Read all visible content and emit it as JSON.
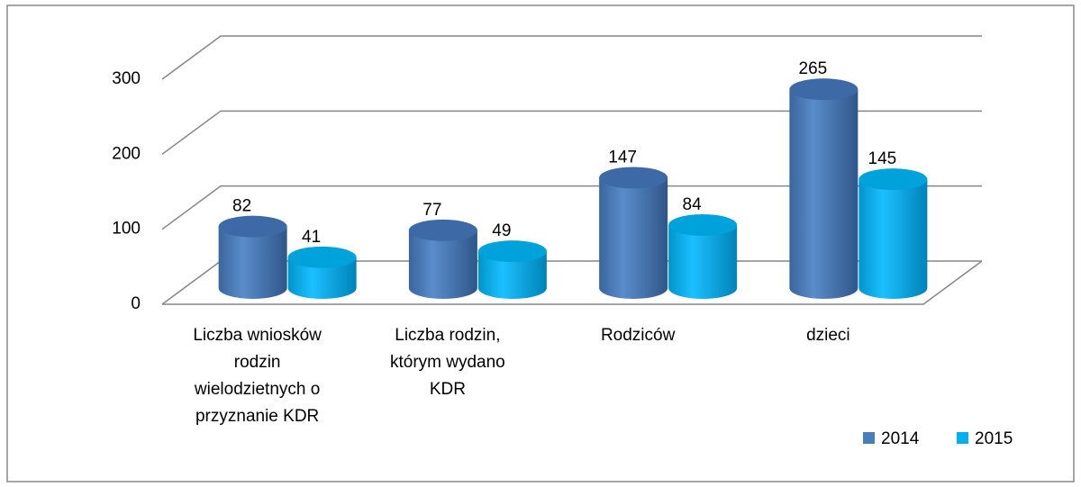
{
  "chart_data": {
    "type": "bar3d",
    "categories": [
      "Liczba wniosków rodzin wielodzietnych o przyznanie KDR",
      "Liczba rodzin, którym wydano KDR",
      "Rodziców",
      "dzieci"
    ],
    "series": [
      {
        "name": "2014",
        "color": "#4a7ebb",
        "values": [
          82,
          77,
          147,
          265
        ]
      },
      {
        "name": "2015",
        "color": "#00b0f0",
        "values": [
          41,
          49,
          84,
          145
        ]
      }
    ],
    "ylim": [
      0,
      300
    ],
    "yticks": [
      0,
      100,
      200,
      300
    ],
    "grid": true,
    "legend": "bottom-right"
  }
}
